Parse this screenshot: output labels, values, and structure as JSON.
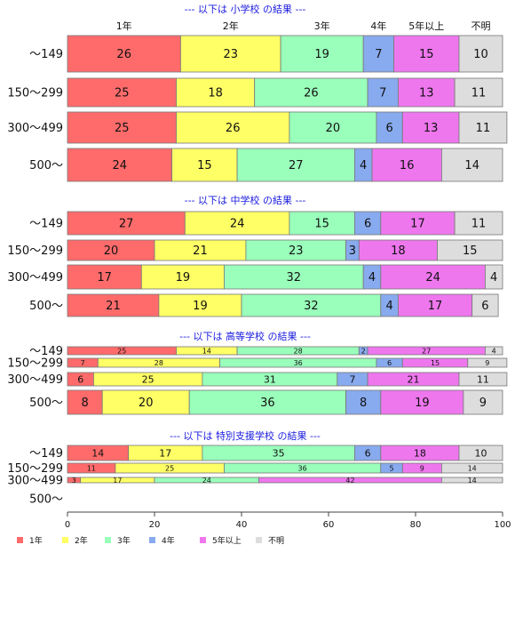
{
  "chart_data": {
    "type": "bar",
    "orientation": "horizontal-stacked-percent",
    "xlim": [
      0,
      100
    ],
    "x_ticks": [
      0,
      20,
      40,
      60,
      80,
      100
    ],
    "series_names": [
      "1年",
      "2年",
      "3年",
      "4年",
      "5年以上",
      "不明"
    ],
    "colors": [
      "#ff6b6b",
      "#ffff66",
      "#99ffbb",
      "#88aaee",
      "#ee77ee",
      "#dddddd"
    ],
    "top_headers": [
      "1年",
      "2年",
      "3年",
      "4年",
      "5年以上",
      "不明"
    ],
    "groups": [
      {
        "title": "--- 以下は 小学校 の結果 ---",
        "rows": [
          {
            "category": "～149",
            "values": [
              26,
              23,
              19,
              7,
              15,
              10
            ]
          },
          {
            "category": "150～299",
            "values": [
              25,
              18,
              26,
              7,
              13,
              11
            ]
          },
          {
            "category": "300～499",
            "values": [
              25,
              26,
              20,
              6,
              13,
              11
            ]
          },
          {
            "category": "500～",
            "values": [
              24,
              15,
              27,
              4,
              16,
              14
            ]
          }
        ]
      },
      {
        "title": "--- 以下は 中学校 の結果 ---",
        "rows": [
          {
            "category": "～149",
            "values": [
              27,
              24,
              15,
              6,
              17,
              11
            ]
          },
          {
            "category": "150～299",
            "values": [
              20,
              21,
              23,
              3,
              18,
              15
            ]
          },
          {
            "category": "300～499",
            "values": [
              17,
              19,
              32,
              4,
              24,
              4
            ]
          },
          {
            "category": "500～",
            "values": [
              21,
              19,
              32,
              4,
              17,
              6
            ]
          }
        ]
      },
      {
        "title": "--- 以下は 高等学校 の結果 ---",
        "rows": [
          {
            "category": "～149",
            "values": [
              25,
              14,
              28,
              2,
              27,
              4
            ]
          },
          {
            "category": "150～299",
            "values": [
              7,
              28,
              36,
              6,
              15,
              9
            ]
          },
          {
            "category": "300～499",
            "values": [
              6,
              25,
              31,
              7,
              21,
              11
            ]
          },
          {
            "category": "500～",
            "values": [
              8,
              20,
              36,
              8,
              19,
              9
            ]
          }
        ]
      },
      {
        "title": "--- 以下は 特別支援学校 の結果 ---",
        "rows": [
          {
            "category": "～149",
            "values": [
              14,
              17,
              35,
              6,
              18,
              10
            ]
          },
          {
            "category": "150～299",
            "values": [
              11,
              25,
              36,
              5,
              9,
              14
            ]
          },
          {
            "category": "300～499",
            "values": [
              3,
              17,
              24,
              0,
              42,
              14
            ]
          },
          {
            "category": "500～",
            "values": []
          }
        ]
      }
    ],
    "legend": [
      "1年",
      "2年",
      "3年",
      "4年",
      "5年以上",
      "不明"
    ],
    "legend_position": "bottom-left",
    "grid": false
  }
}
